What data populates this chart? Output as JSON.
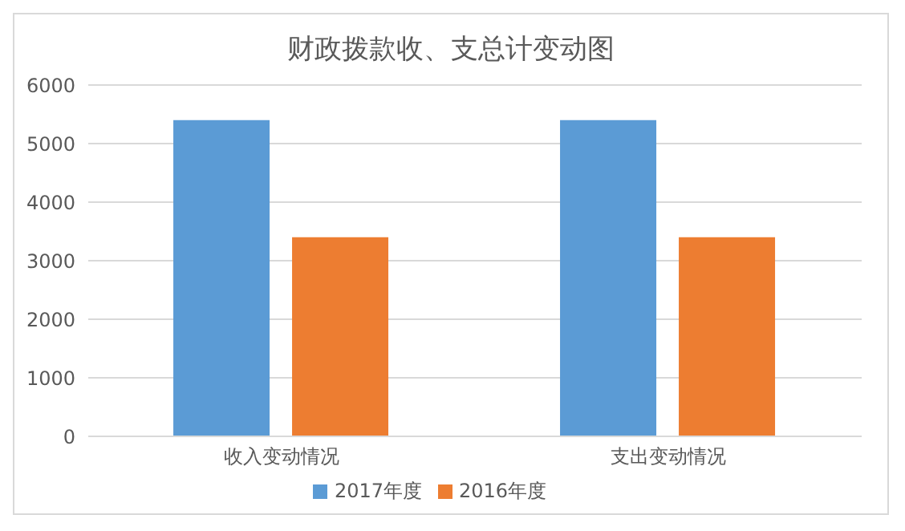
{
  "chart_data": {
    "type": "bar",
    "title": "财政拨款收、支总计变动图",
    "categories": [
      "收入变动情况",
      "支出变动情况"
    ],
    "series": [
      {
        "name": "2017年度",
        "color": "#5b9bd5",
        "values": [
          5400,
          5400
        ]
      },
      {
        "name": "2016年度",
        "color": "#ed7d31",
        "values": [
          3400,
          3400
        ]
      }
    ],
    "ylim": [
      0,
      6000
    ],
    "yticks": [
      0,
      1000,
      2000,
      3000,
      4000,
      5000,
      6000
    ],
    "grid": "y",
    "legend": "bottom"
  }
}
